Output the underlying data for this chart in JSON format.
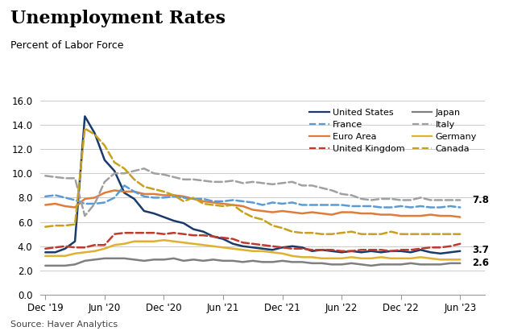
{
  "title": "Unemployment Rates",
  "subtitle": "Percent of Labor Force",
  "source": "Source: Haver Analytics",
  "ylim": [
    0.0,
    16.0
  ],
  "yticks": [
    0.0,
    2.0,
    4.0,
    6.0,
    8.0,
    10.0,
    12.0,
    14.0,
    16.0
  ],
  "x_labels": [
    "Dec '19",
    "Jun '20",
    "Dec '20",
    "Jun '21",
    "Dec '21",
    "Jun '22",
    "Dec '22",
    "Jun '23"
  ],
  "series": [
    {
      "name": "United States",
      "color": "#1a3a6b",
      "linestyle": "solid",
      "linewidth": 1.8,
      "data": [
        3.5,
        3.5,
        3.8,
        4.4,
        14.7,
        13.3,
        11.1,
        10.2,
        8.4,
        7.9,
        6.9,
        6.7,
        6.4,
        6.1,
        5.9,
        5.4,
        5.2,
        4.8,
        4.6,
        4.2,
        4.0,
        3.9,
        3.8,
        3.7,
        3.9,
        4.0,
        3.9,
        3.6,
        3.7,
        3.6,
        3.5,
        3.6,
        3.5,
        3.6,
        3.5,
        3.6,
        3.6,
        3.5,
        3.7,
        3.5,
        3.4,
        3.5,
        3.6
      ]
    },
    {
      "name": "Euro Area",
      "color": "#e07b3a",
      "linestyle": "solid",
      "linewidth": 1.8,
      "data": [
        7.4,
        7.5,
        7.3,
        7.2,
        7.9,
        8.0,
        8.4,
        8.6,
        8.5,
        8.5,
        8.3,
        8.3,
        8.2,
        8.2,
        8.1,
        7.9,
        7.7,
        7.6,
        7.5,
        7.4,
        7.3,
        7.0,
        6.9,
        6.8,
        6.9,
        6.8,
        6.7,
        6.8,
        6.7,
        6.6,
        6.8,
        6.8,
        6.7,
        6.7,
        6.6,
        6.6,
        6.5,
        6.5,
        6.5,
        6.6,
        6.5,
        6.5,
        6.4
      ]
    },
    {
      "name": "Japan",
      "color": "#7f7f7f",
      "linestyle": "solid",
      "linewidth": 1.8,
      "data": [
        2.4,
        2.4,
        2.4,
        2.5,
        2.8,
        2.9,
        3.0,
        3.0,
        3.0,
        2.9,
        2.8,
        2.9,
        2.9,
        3.0,
        2.8,
        2.9,
        2.8,
        2.9,
        2.8,
        2.8,
        2.7,
        2.8,
        2.7,
        2.7,
        2.8,
        2.7,
        2.7,
        2.6,
        2.6,
        2.5,
        2.5,
        2.6,
        2.5,
        2.4,
        2.5,
        2.5,
        2.5,
        2.6,
        2.5,
        2.5,
        2.5,
        2.6,
        2.6
      ]
    },
    {
      "name": "Germany",
      "color": "#e0b030",
      "linestyle": "solid",
      "linewidth": 1.8,
      "data": [
        3.2,
        3.2,
        3.2,
        3.4,
        3.5,
        3.6,
        3.8,
        4.1,
        4.2,
        4.4,
        4.4,
        4.4,
        4.5,
        4.4,
        4.3,
        4.2,
        4.1,
        4.0,
        3.9,
        3.8,
        3.7,
        3.6,
        3.6,
        3.5,
        3.4,
        3.2,
        3.1,
        3.1,
        3.0,
        3.0,
        3.0,
        3.1,
        3.0,
        3.0,
        3.1,
        3.0,
        3.0,
        3.0,
        3.1,
        3.0,
        2.9,
        2.9,
        2.9
      ]
    },
    {
      "name": "France",
      "color": "#5b9bd5",
      "linestyle": "dashed",
      "linewidth": 1.8,
      "data": [
        8.1,
        8.2,
        8.0,
        7.8,
        7.5,
        7.5,
        7.6,
        8.0,
        9.0,
        8.5,
        8.1,
        8.0,
        8.0,
        8.1,
        8.0,
        7.9,
        7.9,
        7.7,
        7.7,
        7.8,
        7.7,
        7.6,
        7.4,
        7.6,
        7.5,
        7.6,
        7.4,
        7.4,
        7.4,
        7.4,
        7.4,
        7.3,
        7.3,
        7.3,
        7.2,
        7.2,
        7.3,
        7.2,
        7.3,
        7.2,
        7.2,
        7.3,
        7.2
      ]
    },
    {
      "name": "United Kingdom",
      "color": "#c0392b",
      "linestyle": "dashed",
      "linewidth": 1.8,
      "data": [
        3.8,
        3.9,
        4.0,
        3.9,
        3.9,
        4.1,
        4.1,
        5.0,
        5.1,
        5.1,
        5.1,
        5.1,
        5.0,
        5.1,
        5.0,
        4.9,
        4.9,
        4.8,
        4.7,
        4.6,
        4.3,
        4.2,
        4.1,
        4.0,
        3.9,
        3.8,
        3.8,
        3.7,
        3.7,
        3.7,
        3.6,
        3.6,
        3.7,
        3.7,
        3.7,
        3.6,
        3.7,
        3.7,
        3.8,
        3.9,
        3.9,
        4.0,
        4.2
      ]
    },
    {
      "name": "Italy",
      "color": "#a0a0a0",
      "linestyle": "dashed",
      "linewidth": 1.8,
      "data": [
        9.8,
        9.7,
        9.6,
        9.6,
        6.5,
        7.5,
        9.3,
        10.0,
        10.0,
        10.2,
        10.4,
        10.0,
        9.9,
        9.7,
        9.5,
        9.5,
        9.4,
        9.3,
        9.3,
        9.4,
        9.2,
        9.3,
        9.2,
        9.1,
        9.2,
        9.3,
        9.0,
        9.0,
        8.8,
        8.6,
        8.3,
        8.2,
        7.9,
        7.8,
        7.9,
        7.9,
        7.8,
        7.8,
        8.0,
        7.8,
        7.8,
        7.8,
        7.8
      ]
    },
    {
      "name": "Canada",
      "color": "#c8a020",
      "linestyle": "dashed",
      "linewidth": 1.8,
      "data": [
        5.6,
        5.7,
        5.7,
        5.8,
        13.7,
        13.2,
        12.3,
        10.9,
        10.4,
        9.5,
        8.9,
        8.7,
        8.5,
        8.2,
        7.7,
        8.0,
        7.5,
        7.4,
        7.3,
        7.4,
        6.8,
        6.4,
        6.2,
        5.7,
        5.5,
        5.2,
        5.1,
        5.1,
        5.0,
        5.0,
        5.1,
        5.2,
        5.0,
        5.0,
        5.0,
        5.2,
        5.0,
        5.0,
        5.0,
        5.0,
        5.0,
        5.0,
        5.0
      ]
    }
  ]
}
